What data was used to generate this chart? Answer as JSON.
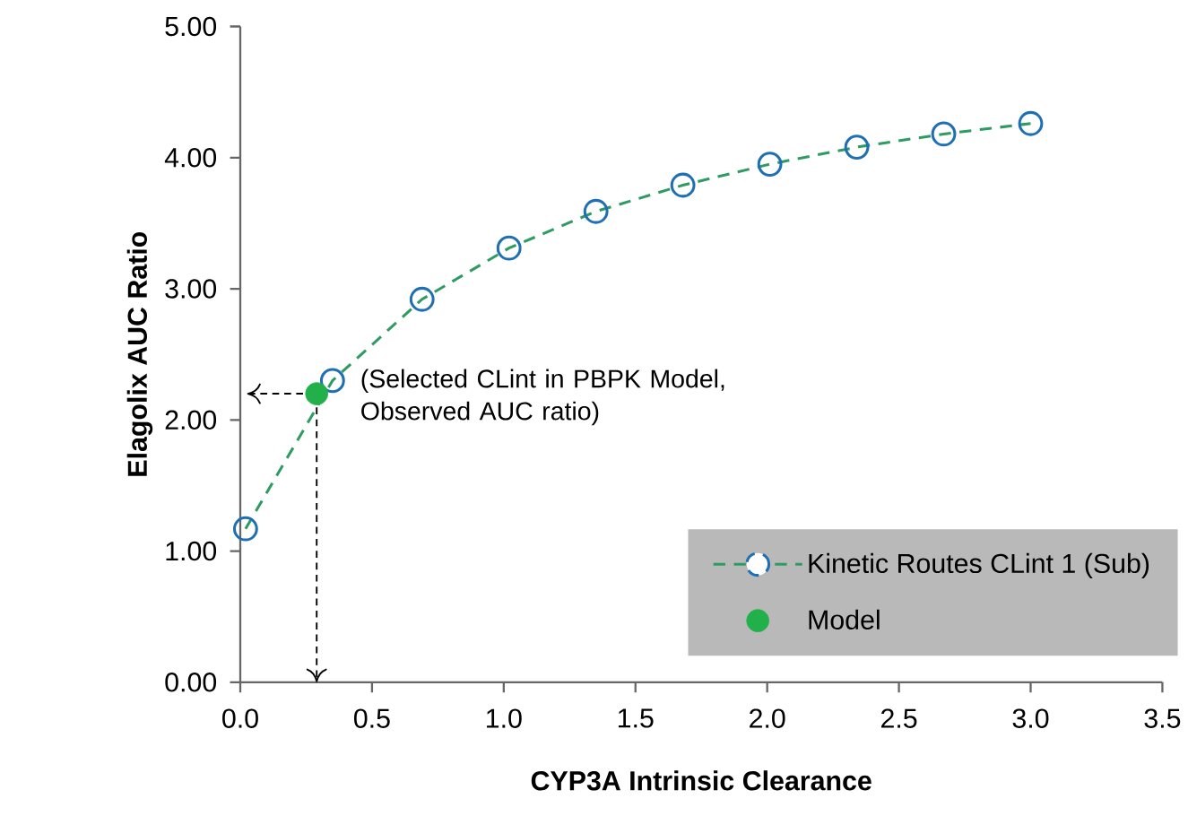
{
  "chart_data": {
    "type": "line",
    "xlabel": "CYP3A Intrinsic Clearance",
    "ylabel": "Elagolix AUC Ratio",
    "series": [
      {
        "name": "Kinetic Routes CLint 1 (Sub)",
        "color": "#2e9b62",
        "line_style": "dashed",
        "marker": "circle",
        "colors": [
          "#1f6fb4",
          "#1f6fb4",
          "#1f6fb4",
          "#1f6fb4",
          "#1f6fb4",
          "#1f6fb4",
          "#1f6fb4",
          "#1f6fb4",
          "#1f6fb4",
          "#1f6fb4"
        ],
        "x": [
          0.02,
          0.35,
          0.69,
          1.02,
          1.35,
          1.68,
          2.01,
          2.34,
          2.67,
          3.0
        ],
        "values": [
          1.17,
          2.3,
          2.92,
          3.31,
          3.59,
          3.79,
          3.95,
          4.08,
          4.18,
          4.26
        ]
      },
      {
        "name": "Model",
        "type": "scatter",
        "color": "#22b04b",
        "marker": "circle",
        "x": [
          0.29
        ],
        "values": [
          2.2
        ]
      }
    ],
    "annotations": [
      {
        "text": "(Selected CLint in PBPK Model, Observed AUC ratio)",
        "x": 0.29,
        "y": 2.2
      }
    ],
    "xlim": [
      0,
      3.5
    ],
    "ylim": [
      0,
      5
    ],
    "xticks": [
      {
        "value": 0,
        "label": "0.0"
      },
      {
        "value": 0.5,
        "label": "0.5"
      },
      {
        "value": 1,
        "label": "1.0"
      },
      {
        "value": 1.5,
        "label": "1.5"
      },
      {
        "value": 2,
        "label": "2.0"
      },
      {
        "value": 2.5,
        "label": "2.5"
      },
      {
        "value": 3,
        "label": "3.0"
      },
      {
        "value": 3.5,
        "label": "3.5"
      }
    ],
    "yticks": [
      {
        "value": 0,
        "label": "0.00"
      },
      {
        "value": 1,
        "label": "1.00"
      },
      {
        "value": 2,
        "label": "2.00"
      },
      {
        "value": 3,
        "label": "3.00"
      },
      {
        "value": 4,
        "label": "4.00"
      },
      {
        "value": 5,
        "label": "5.00"
      }
    ],
    "grid": false,
    "legend": "bottom right"
  }
}
